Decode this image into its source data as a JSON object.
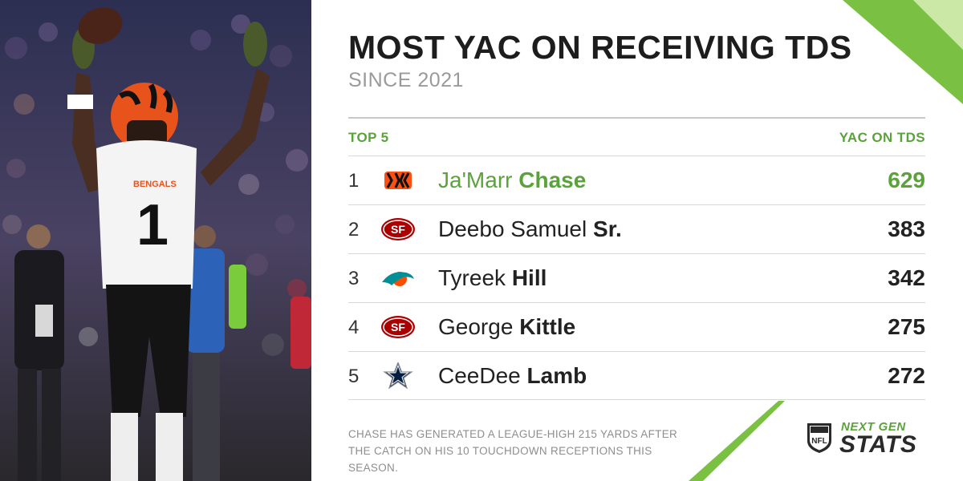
{
  "header": {
    "title": "MOST YAC ON RECEIVING TDS",
    "subtitle": "SINCE 2021"
  },
  "table": {
    "left_header": "TOP 5",
    "right_header": "YAC ON TDS",
    "rows": [
      {
        "rank": "1",
        "first": "Ja'Marr",
        "last": "Chase",
        "value": "629",
        "team_logo": "bengals-logo"
      },
      {
        "rank": "2",
        "first": "Deebo Samuel",
        "last": "Sr.",
        "value": "383",
        "team_logo": "49ers-logo"
      },
      {
        "rank": "3",
        "first": "Tyreek",
        "last": "Hill",
        "value": "342",
        "team_logo": "dolphins-logo"
      },
      {
        "rank": "4",
        "first": "George",
        "last": "Kittle",
        "value": "275",
        "team_logo": "49ers-logo"
      },
      {
        "rank": "5",
        "first": "CeeDee",
        "last": "Lamb",
        "value": "272",
        "team_logo": "cowboys-logo"
      }
    ]
  },
  "footnote": "CHASE HAS GENERATED A LEAGUE-HIGH 215 YARDS AFTER THE CATCH ON HIS 10 TOUCHDOWN RECEPTIONS THIS SEASON.",
  "branding": {
    "nfl_shield": "NFL",
    "line1": "NEXT GEN",
    "line2": "STATS"
  },
  "photo": {
    "jersey_text": "BENGALS",
    "jersey_number": "1"
  },
  "colors": {
    "accent_green": "#5aa33a",
    "bengals_orange": "#fb4f14",
    "niners_red": "#aa0000",
    "dolphins_aqua": "#008e97",
    "cowboys_navy": "#041e42"
  }
}
